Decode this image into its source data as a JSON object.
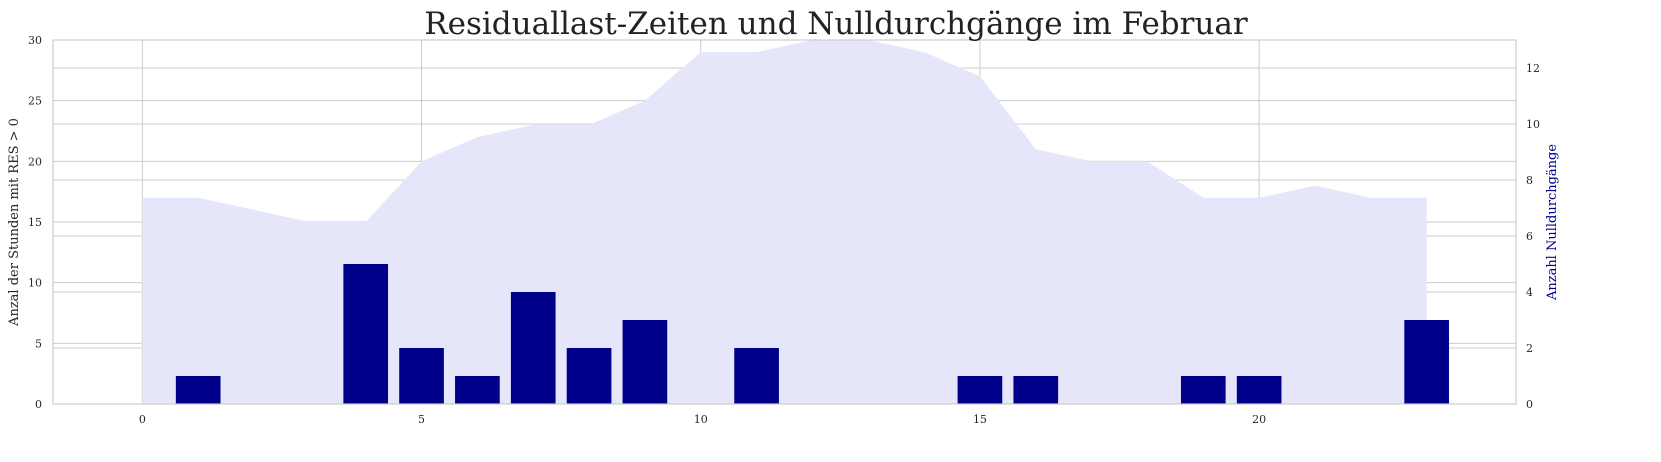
{
  "chart_data": {
    "type": "bar",
    "title": "Residuallast-Zeiten und Nulldurchgänge im Februar",
    "ylabel": "Anzal der Stunden mit RES > 0",
    "ylabel_right": "Anzahl Nulldurchgänge",
    "xlim": [
      -1.6,
      24.6
    ],
    "ylim": [
      0,
      30
    ],
    "ylim_right": [
      0,
      13
    ],
    "xticks": [
      0,
      5,
      10,
      15,
      20
    ],
    "yticks": [
      0,
      5,
      10,
      15,
      20,
      25,
      30
    ],
    "yticks_right": [
      0,
      2,
      4,
      6,
      8,
      10,
      12
    ],
    "grid": true,
    "colors": {
      "area": "#e6e6fa",
      "bars": "#00008b",
      "grid": "#cccccc",
      "right_label": "#00008b"
    },
    "series": [
      {
        "type": "area",
        "axis": "left",
        "x": [
          0,
          1,
          2,
          3,
          4,
          5,
          6,
          7,
          8,
          9,
          10,
          11,
          12,
          13,
          14,
          15,
          16,
          17,
          18,
          19,
          20,
          21,
          22,
          23
        ],
        "values": [
          17,
          17,
          16,
          15,
          15,
          20,
          22,
          23,
          23,
          25,
          29,
          29,
          31,
          31,
          29,
          27,
          21,
          20,
          20,
          17,
          17,
          18,
          17,
          17
        ]
      },
      {
        "type": "bar",
        "axis": "right",
        "x": [
          1,
          4,
          5,
          6,
          7,
          8,
          9,
          11,
          15,
          16,
          19,
          20,
          23
        ],
        "values": [
          1,
          5,
          2,
          1,
          4,
          2,
          3,
          2,
          1,
          1,
          1,
          1,
          3
        ]
      }
    ]
  }
}
